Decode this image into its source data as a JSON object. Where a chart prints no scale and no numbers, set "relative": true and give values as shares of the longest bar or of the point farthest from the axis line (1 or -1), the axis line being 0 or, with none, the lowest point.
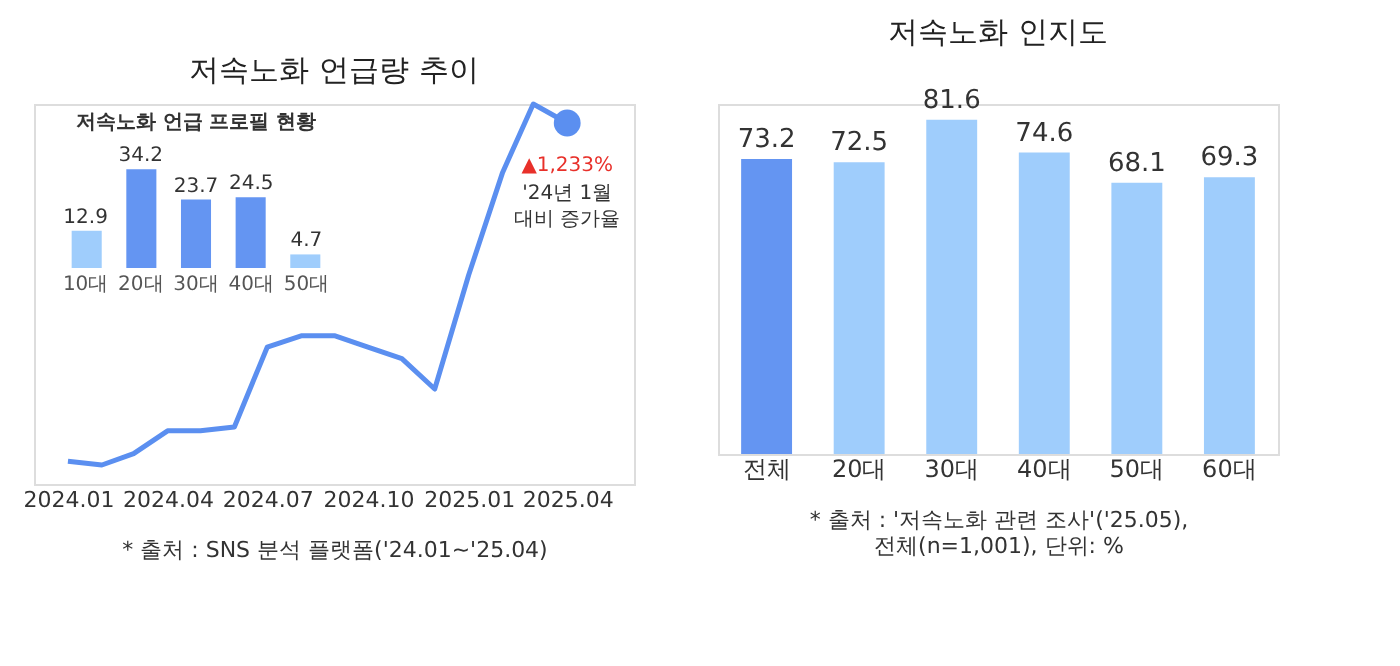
{
  "chart_data": [
    {
      "type": "line",
      "title": "저속노화 언급량 추이",
      "relative": true,
      "x": [
        "2024-01",
        "2024-02",
        "2024-03",
        "2024-04",
        "2024-05",
        "2024-06",
        "2024-07",
        "2024-08",
        "2024-09",
        "2024-10",
        "2024-11",
        "2024-12",
        "2025-01",
        "2025-02",
        "2025-03",
        "2025-04"
      ],
      "series": [
        {
          "color": "#5b8ff0",
          "values": [
            0.06,
            0.05,
            0.08,
            0.14,
            0.14,
            0.15,
            0.36,
            0.39,
            0.39,
            0.36,
            0.33,
            0.25,
            0.55,
            0.82,
            1,
            0.95
          ]
        }
      ],
      "xticks": [
        {
          "value": "2024-01",
          "label": "2024.01"
        },
        {
          "value": "2024-04",
          "label": "2024.04"
        },
        {
          "value": "2024-07",
          "label": "2024.07"
        },
        {
          "value": "2024-10",
          "label": "2024.10"
        },
        {
          "value": "2025-01",
          "label": "2025.01"
        },
        {
          "value": "2025-04",
          "label": "2025.04"
        }
      ],
      "xlim": [
        "2023-12",
        "2025-06"
      ],
      "tick_labels": "x",
      "line_style": "solid",
      "annotations": [
        {
          "text": "▲1,233%",
          "x": "2025-04",
          "y": 0.95
        },
        {
          "text": "'24년 1월 대비 증가율",
          "x": "2025-04",
          "y": 0.95
        },
        "* 출처 : SNS 분석 플랫폼('24.01~'25.04)"
      ]
    },
    {
      "type": "bar",
      "title": "저속노화 언급 프로필 현황",
      "categories": [
        "10대",
        "20대",
        "30대",
        "40대",
        "50대"
      ],
      "values": [
        12.9,
        34.2,
        23.7,
        24.5,
        4.7
      ],
      "colors": [
        "#9fcdfc",
        "#6495f2",
        "#6495f2",
        "#6495f2",
        "#9fcdfc"
      ],
      "ylim": [
        0,
        36
      ],
      "data_labels": true,
      "tick_labels": "x"
    },
    {
      "type": "bar",
      "title": "저속노화 인지도",
      "categories": [
        "전체",
        "20대",
        "30대",
        "40대",
        "50대",
        "60대"
      ],
      "values": [
        73.2,
        72.5,
        81.6,
        74.6,
        68.1,
        69.3
      ],
      "colors": [
        "#6495f2",
        "#9fcdfc",
        "#9fcdfc",
        "#9fcdfc",
        "#9fcdfc",
        "#9fcdfc"
      ],
      "ylim": [
        10,
        85
      ],
      "data_labels": true,
      "tick_labels": "x",
      "annotations": [
        "* 출처 : '저속노화 관련 조사'('25.05),",
        "전체(n=1,001), 단위: %"
      ]
    }
  ]
}
